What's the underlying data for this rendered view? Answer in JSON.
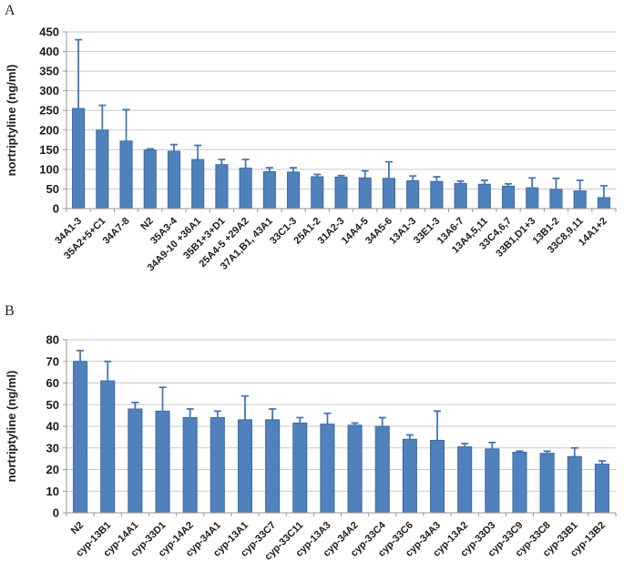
{
  "figure": {
    "panel_labels": [
      "A",
      "B"
    ]
  },
  "colors": {
    "bar_fill": "#4F81BD",
    "bar_stroke": "#41699F",
    "error_bar": "#4676B4",
    "gridline": "#C9C9C9",
    "axis": "#969696",
    "tick_text": "#1A1A1A",
    "background": "#FFFFFF"
  },
  "chart_data": [
    {
      "type": "bar",
      "panel": "A",
      "title": "",
      "xlabel": "",
      "ylabel": "nortriptyline (ng/ml)",
      "ylim": [
        0,
        450
      ],
      "ytick_step": 50,
      "grid": true,
      "legend": "none",
      "error_bars": "plus-only",
      "categories": [
        "34A1-3",
        "35A2+5+C1",
        "34A7-8",
        "N2",
        "35A3-4",
        "34A9-10 +36A1",
        "35B1+3+D1",
        "25A4-5 +29A2",
        "37A1,B1, 43A1",
        "33C1-3",
        "25A1-2",
        "31A2-3",
        "14A4-5",
        "34A5-6",
        "13A1-3",
        "33E1-3",
        "13A6-7",
        "13A4,5,11",
        "33C4,6,7",
        "33B1,D1+3",
        "13B1-2",
        "33C8,9,11",
        "14A1+2"
      ],
      "values": [
        255,
        200,
        172,
        149,
        146,
        125,
        112,
        103,
        94,
        93,
        81,
        80,
        78,
        77,
        71,
        69,
        64,
        62,
        57,
        53,
        49,
        45,
        28
      ],
      "error_plus": [
        175,
        63,
        80,
        3,
        17,
        36,
        13,
        22,
        10,
        11,
        6,
        4,
        18,
        42,
        12,
        12,
        6,
        10,
        6,
        25,
        28,
        27,
        30
      ]
    },
    {
      "type": "bar",
      "panel": "B",
      "title": "",
      "xlabel": "",
      "ylabel": "nortriptyline (ng/ml)",
      "ylim": [
        0,
        80
      ],
      "ytick_step": 10,
      "grid": true,
      "legend": "none",
      "error_bars": "plus-only",
      "categories": [
        "N2",
        "cyp-13B1",
        "cyp-14A1",
        "cyp-33D1",
        "cyp-14A2",
        "cyp-34A1",
        "cyp-13A1",
        "cyp-33C7",
        "cyp-33C11",
        "cyp-13A3",
        "cyp-34A2",
        "cyp-33C4",
        "cyp-33C6",
        "cyp-34A3",
        "cyp-13A2",
        "cyp-33D3",
        "cyp-33C9",
        "cyp-33C8",
        "cyp-33B1",
        "cyp-13B2"
      ],
      "values": [
        70,
        61,
        48,
        47,
        44,
        44,
        43,
        43,
        41.5,
        41,
        40.5,
        40,
        34,
        33.5,
        30.5,
        29.5,
        28,
        27.5,
        26,
        22.5
      ],
      "error_plus": [
        5,
        9,
        3,
        11,
        4,
        3,
        11,
        5,
        2.5,
        5,
        1,
        4,
        2,
        13.5,
        1.5,
        3,
        0.5,
        1,
        4,
        1.5
      ]
    }
  ]
}
